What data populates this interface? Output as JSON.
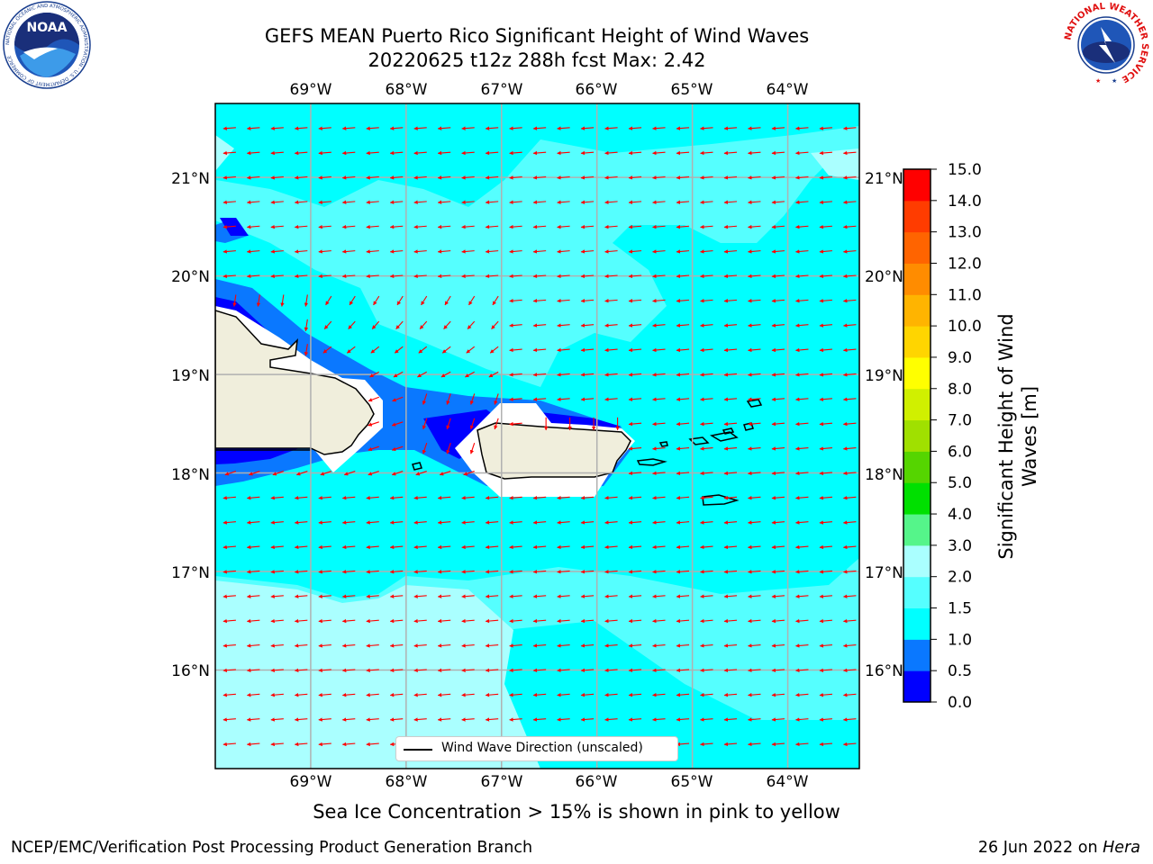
{
  "title": {
    "line1": "GEFS MEAN Puerto Rico Significant Height of Wind Waves",
    "line2": "20220625 t12z 288h fcst   Max: 2.42"
  },
  "map": {
    "lon_labels": [
      "69°W",
      "68°W",
      "67°W",
      "66°W",
      "65°W",
      "64°W"
    ],
    "lat_labels": [
      "21°N",
      "20°N",
      "19°N",
      "18°N",
      "17°N",
      "16°N"
    ],
    "lon_range": [
      -70.0,
      -63.25
    ],
    "lat_range": [
      15.0,
      21.75
    ],
    "wind_wave_direction": "from east, westward arrows",
    "land_color": "#f0eedc",
    "arrow_color": "#ff0000"
  },
  "legend": {
    "label": "Wind Wave Direction (unscaled)"
  },
  "colorbar": {
    "title_line1": "Significant Height of Wind",
    "title_line2": "Waves [m]",
    "ticks": [
      "0.0",
      "0.5",
      "1.0",
      "1.5",
      "2.0",
      "3.0",
      "4.0",
      "5.0",
      "6.0",
      "7.0",
      "8.0",
      "9.0",
      "10.0",
      "11.0",
      "12.0",
      "13.0",
      "14.0",
      "15.0"
    ],
    "colors": [
      "#0000ff",
      "#0a78ff",
      "#00ffff",
      "#55ffff",
      "#aaffff",
      "#55f58a",
      "#00e000",
      "#55d500",
      "#a0e000",
      "#d0f000",
      "#ffff00",
      "#ffd500",
      "#ffb400",
      "#ff8c00",
      "#ff6400",
      "#ff3c00",
      "#ff0000"
    ]
  },
  "note": "Sea Ice Concentration > 15% is shown in pink to yellow",
  "footer": {
    "left": "NCEP/EMC/Verification Post Processing Product Generation Branch",
    "right_date": "26 Jun 2022 on",
    "right_host": "Hera"
  },
  "logos": {
    "noaa": "NOAA",
    "noaa_ring": "NATIONAL OCEANIC AND ATMOSPHERIC ADMINISTRATION · U.S. DEPARTMENT OF COMMERCE",
    "nws_ring": "NATIONAL WEATHER SERVICE"
  }
}
